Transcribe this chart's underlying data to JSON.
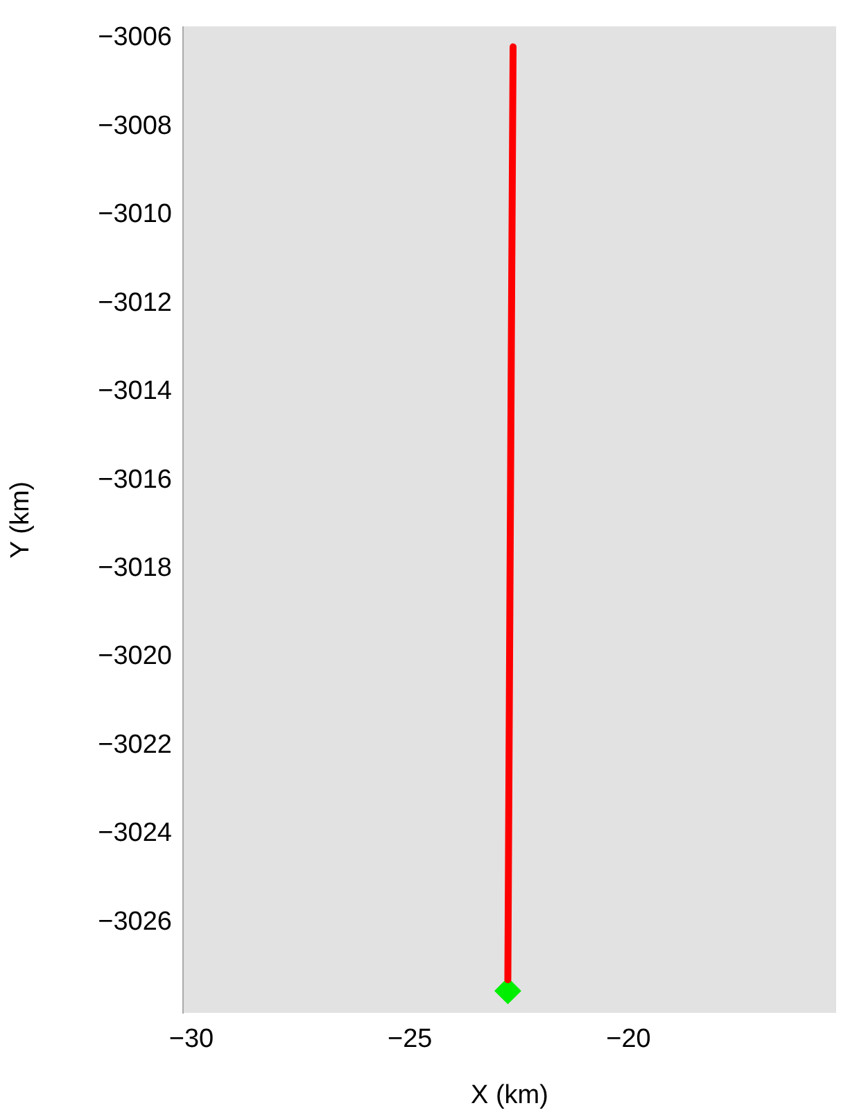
{
  "chart_data": {
    "type": "line",
    "xlabel": "X (km)",
    "ylabel": "Y (km)",
    "xlim": [
      -30.19,
      -15.25
    ],
    "ylim": [
      -3028.05,
      -3005.75
    ],
    "xticks": [
      {
        "value": -30,
        "label": "−30"
      },
      {
        "value": -25,
        "label": "−25"
      },
      {
        "value": -20,
        "label": "−20"
      }
    ],
    "yticks": [
      {
        "value": -3006,
        "label": "−3006"
      },
      {
        "value": -3008,
        "label": "−3008"
      },
      {
        "value": -3010,
        "label": "−3010"
      },
      {
        "value": -3012,
        "label": "−3012"
      },
      {
        "value": -3014,
        "label": "−3014"
      },
      {
        "value": -3016,
        "label": "−3016"
      },
      {
        "value": -3018,
        "label": "−3018"
      },
      {
        "value": -3020,
        "label": "−3020"
      },
      {
        "value": -3022,
        "label": "−3022"
      },
      {
        "value": -3024,
        "label": "−3024"
      },
      {
        "value": -3026,
        "label": "−3026"
      }
    ],
    "grid": false,
    "legend": false,
    "marker": "none",
    "series": [
      {
        "color": "#ff0000",
        "x": [
          -22.76,
          -22.72,
          -22.68,
          -22.64
        ],
        "values": [
          -3027.3,
          -3020,
          -3013,
          -3006.2
        ]
      },
      {
        "type": "scatter",
        "color": "#00ee00",
        "marker": "diamond",
        "x": [
          -22.76
        ],
        "values": [
          -3027.55
        ]
      }
    ]
  }
}
